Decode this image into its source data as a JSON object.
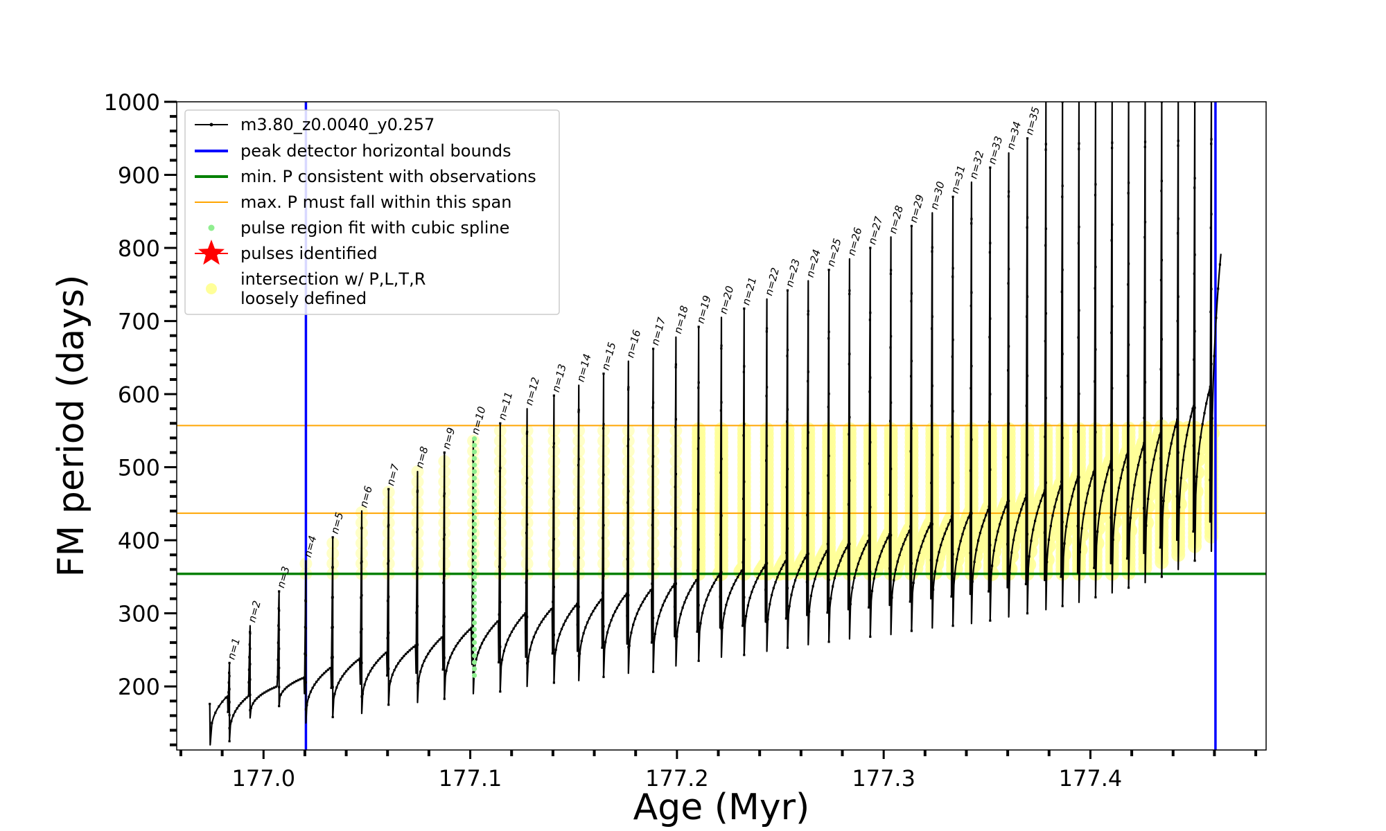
{
  "chart_data": {
    "type": "line",
    "xlabel": "Age (Myr)",
    "ylabel": "FM period (days)",
    "xlim": [
      176.958,
      177.485
    ],
    "ylim": [
      113,
      1000
    ],
    "x_ticks": [
      {
        "value": 177.0,
        "label": "177.0"
      },
      {
        "value": 177.1,
        "label": "177.1"
      },
      {
        "value": 177.2,
        "label": "177.2"
      },
      {
        "value": 177.3,
        "label": "177.3"
      },
      {
        "value": 177.4,
        "label": "177.4"
      }
    ],
    "y_ticks": [
      {
        "value": 200,
        "label": "200"
      },
      {
        "value": 300,
        "label": "300"
      },
      {
        "value": 400,
        "label": "400"
      },
      {
        "value": 500,
        "label": "500"
      },
      {
        "value": 600,
        "label": "600"
      },
      {
        "value": 700,
        "label": "700"
      },
      {
        "value": 800,
        "label": "800"
      },
      {
        "value": 900,
        "label": "900"
      },
      {
        "value": 1000,
        "label": "1000"
      }
    ],
    "legend": {
      "position": "upper-left",
      "entries": [
        {
          "label": "m3.80_z0.0040_y0.257",
          "style": "black-line-dots",
          "color": "#000000"
        },
        {
          "label": "peak detector horizontal bounds",
          "style": "line",
          "color": "#0000ff"
        },
        {
          "label": "min. P consistent with observations",
          "style": "line",
          "color": "#008000"
        },
        {
          "label": "max. P must fall within this span",
          "style": "thin-line",
          "color": "#ffa500"
        },
        {
          "label": "pulse region fit with cubic spline",
          "style": "dot",
          "color": "#90ee90"
        },
        {
          "label": "pulses identified",
          "style": "star",
          "color": "#ff0000"
        },
        {
          "label": "intersection w/ P,L,T,R",
          "label2": "loosely defined",
          "style": "circle",
          "color": "#ffff99"
        }
      ]
    },
    "vertical_lines": [
      {
        "x": 177.0205,
        "color": "#0000ff"
      },
      {
        "x": 177.4605,
        "color": "#0000ff"
      }
    ],
    "horizontal_lines": [
      {
        "y": 354,
        "color": "#008000",
        "width": 3.5
      },
      {
        "y": 437,
        "color": "#ffa500",
        "width": 2
      },
      {
        "y": 557,
        "color": "#ffa500",
        "width": 2
      }
    ],
    "pulse_labels": [
      "n=1",
      "n=2",
      "n=3",
      "n=4",
      "n=5",
      "n=6",
      "n=7",
      "n=8",
      "n=9",
      "n=10",
      "n=11",
      "n=12",
      "n=13",
      "n=14",
      "n=15",
      "n=16",
      "n=17",
      "n=18",
      "n=19",
      "n=20",
      "n=21",
      "n=22",
      "n=23",
      "n=24",
      "n=25",
      "n=26",
      "n=27",
      "n=28",
      "n=29",
      "n=30",
      "n=31",
      "n=32",
      "n=33",
      "n=34",
      "n=35"
    ],
    "pulses": [
      {
        "x": 176.9835,
        "peak": 232,
        "min": 125,
        "base_end": 187
      },
      {
        "x": 176.9935,
        "peak": 283,
        "min": 157,
        "base_end": 200
      },
      {
        "x": 177.0075,
        "peak": 330,
        "min": 173,
        "base_end": 212
      },
      {
        "x": 177.0205,
        "peak": 372,
        "min": 150,
        "base_end": 226
      },
      {
        "x": 177.0335,
        "peak": 404,
        "min": 158,
        "base_end": 238
      },
      {
        "x": 177.0475,
        "peak": 440,
        "min": 163,
        "base_end": 247
      },
      {
        "x": 177.0605,
        "peak": 470,
        "min": 175,
        "base_end": 256
      },
      {
        "x": 177.0745,
        "peak": 494,
        "min": 178,
        "base_end": 268
      },
      {
        "x": 177.0875,
        "peak": 520,
        "min": 183,
        "base_end": 280
      },
      {
        "x": 177.1015,
        "peak": 540,
        "min": 190,
        "base_end": 290
      },
      {
        "x": 177.1145,
        "peak": 560,
        "min": 193,
        "base_end": 300
      },
      {
        "x": 177.1275,
        "peak": 580,
        "min": 200,
        "base_end": 307
      },
      {
        "x": 177.1405,
        "peak": 598,
        "min": 205,
        "base_end": 313
      },
      {
        "x": 177.1525,
        "peak": 612,
        "min": 208,
        "base_end": 320
      },
      {
        "x": 177.1645,
        "peak": 628,
        "min": 213,
        "base_end": 327
      },
      {
        "x": 177.1765,
        "peak": 645,
        "min": 218,
        "base_end": 333
      },
      {
        "x": 177.1885,
        "peak": 662,
        "min": 220,
        "base_end": 340
      },
      {
        "x": 177.1995,
        "peak": 678,
        "min": 228,
        "base_end": 347
      },
      {
        "x": 177.2105,
        "peak": 692,
        "min": 235,
        "base_end": 354
      },
      {
        "x": 177.2215,
        "peak": 705,
        "min": 240,
        "base_end": 360
      },
      {
        "x": 177.2325,
        "peak": 717,
        "min": 243,
        "base_end": 366
      },
      {
        "x": 177.2435,
        "peak": 730,
        "min": 248,
        "base_end": 373
      },
      {
        "x": 177.2535,
        "peak": 742,
        "min": 253,
        "base_end": 380
      },
      {
        "x": 177.2635,
        "peak": 755,
        "min": 257,
        "base_end": 387
      },
      {
        "x": 177.2735,
        "peak": 770,
        "min": 261,
        "base_end": 394
      },
      {
        "x": 177.2835,
        "peak": 785,
        "min": 265,
        "base_end": 401
      },
      {
        "x": 177.2935,
        "peak": 800,
        "min": 268,
        "base_end": 408
      },
      {
        "x": 177.3035,
        "peak": 815,
        "min": 271,
        "base_end": 415
      },
      {
        "x": 177.3135,
        "peak": 830,
        "min": 276,
        "base_end": 423
      },
      {
        "x": 177.3235,
        "peak": 848,
        "min": 280,
        "base_end": 430
      },
      {
        "x": 177.3335,
        "peak": 870,
        "min": 283,
        "base_end": 437
      },
      {
        "x": 177.3425,
        "peak": 890,
        "min": 286,
        "base_end": 444
      },
      {
        "x": 177.3515,
        "peak": 910,
        "min": 290,
        "base_end": 452
      },
      {
        "x": 177.3605,
        "peak": 930,
        "min": 295,
        "base_end": 460
      },
      {
        "x": 177.3695,
        "peak": 950,
        "min": 300,
        "base_end": 468
      },
      {
        "x": 177.3785,
        "peak": 1000,
        "min": 305,
        "base_end": 477
      },
      {
        "x": 177.3865,
        "peak": 1000,
        "min": 310,
        "base_end": 487
      },
      {
        "x": 177.3945,
        "peak": 1000,
        "min": 315,
        "base_end": 497
      },
      {
        "x": 177.4025,
        "peak": 1000,
        "min": 322,
        "base_end": 508
      },
      {
        "x": 177.4105,
        "peak": 1000,
        "min": 328,
        "base_end": 520
      },
      {
        "x": 177.4185,
        "peak": 1000,
        "min": 335,
        "base_end": 533
      },
      {
        "x": 177.4265,
        "peak": 1000,
        "min": 342,
        "base_end": 548
      },
      {
        "x": 177.4345,
        "peak": 1000,
        "min": 350,
        "base_end": 565
      },
      {
        "x": 177.4425,
        "peak": 1000,
        "min": 360,
        "base_end": 585
      },
      {
        "x": 177.4505,
        "peak": 1000,
        "min": 372,
        "base_end": 610
      },
      {
        "x": 177.4585,
        "peak": 1000,
        "min": 385,
        "base_end": 640
      }
    ],
    "final_segment": {
      "x_end": 177.4635,
      "y_end": 792
    },
    "spline_pulse_index": 9,
    "yellow_band": {
      "lower": [
        [
          177.017,
          354
        ],
        [
          177.21,
          354
        ],
        [
          177.33,
          354
        ],
        [
          177.38,
          380
        ],
        [
          177.46,
          540
        ]
      ],
      "upper": [
        [
          177.017,
          380
        ],
        [
          177.05,
          460
        ],
        [
          177.21,
          470
        ],
        [
          177.3,
          530
        ],
        [
          177.37,
          557
        ],
        [
          177.46,
          557
        ]
      ],
      "dense_from_x": 177.205
    },
    "grid": false
  }
}
